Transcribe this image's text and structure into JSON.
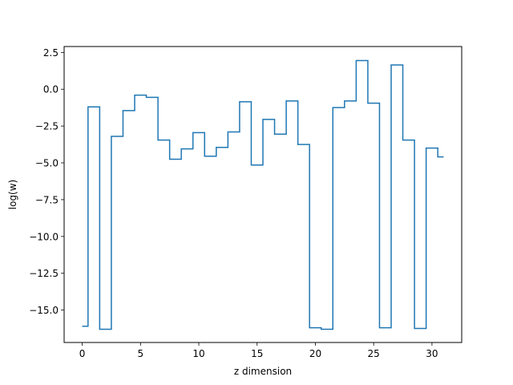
{
  "chart_data": {
    "type": "line",
    "drawstyle": "steps-mid",
    "title": "",
    "xlabel": "z dimension",
    "ylabel": "log(w)",
    "xlim": [
      -1.55,
      32.55
    ],
    "ylim": [
      -17.2,
      2.9
    ],
    "xticks": [
      0,
      5,
      10,
      15,
      20,
      25,
      30
    ],
    "yticks": [
      2.5,
      0.0,
      -2.5,
      -5.0,
      -7.5,
      -10.0,
      -12.5,
      -15.0
    ],
    "ytick_labels": [
      "2.5",
      "0.0",
      "−2.5",
      "−5.0",
      "−7.5",
      "−10.0",
      "−12.5",
      "−15.0"
    ],
    "grid": false,
    "legend": "none",
    "series": [
      {
        "color": "#1f77b4",
        "x": [
          0,
          1,
          2,
          3,
          4,
          5,
          6,
          7,
          8,
          9,
          10,
          11,
          12,
          13,
          14,
          15,
          16,
          17,
          18,
          19,
          20,
          21,
          22,
          23,
          24,
          25,
          26,
          27,
          28,
          29,
          30,
          31
        ],
        "y": [
          -16.1,
          -1.2,
          -16.3,
          -3.2,
          -1.45,
          -0.4,
          -0.55,
          -3.45,
          -4.75,
          -4.05,
          -2.95,
          -4.55,
          -3.95,
          -2.9,
          -0.85,
          -5.15,
          -2.05,
          -3.05,
          -0.8,
          -3.75,
          -16.2,
          -16.3,
          -1.25,
          -0.8,
          1.95,
          -0.95,
          -16.2,
          1.65,
          -3.45,
          -16.25,
          -4.0,
          -4.6
        ]
      }
    ]
  }
}
